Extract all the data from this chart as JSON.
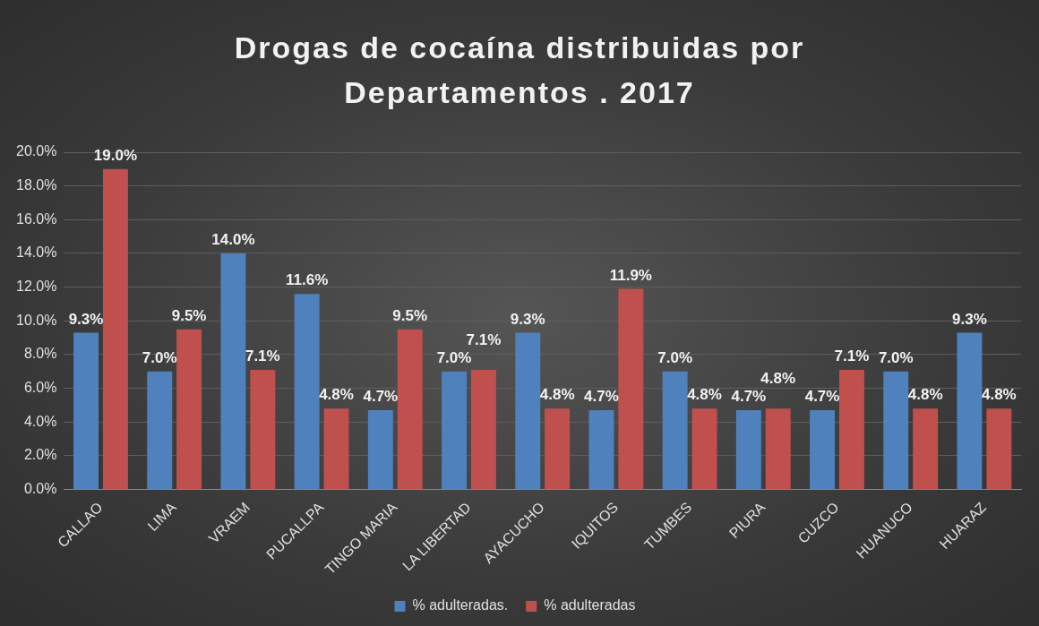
{
  "chart_data": {
    "type": "bar",
    "title": "Drogas de cocaína  distribuidas por Departamentos . 2017",
    "categories": [
      "CALLAO",
      "LIMA",
      "VRAEM",
      "PUCALLPA",
      "TINGO MARIA",
      "LA LIBERTAD",
      "AYACUCHO",
      "IQUITOS",
      "TUMBES",
      "PIURA",
      "CUZCO",
      "HUANUCO",
      "HUARAZ"
    ],
    "series": [
      {
        "name": "% adulteradas.",
        "color": "#4f81bd",
        "values": [
          9.3,
          7.0,
          14.0,
          11.6,
          4.7,
          7.0,
          9.3,
          4.7,
          7.0,
          4.7,
          4.7,
          7.0,
          9.3
        ],
        "value_labels": [
          "9.3%",
          "7.0%",
          "14.0%",
          "11.6%",
          "4.7%",
          "7.0%",
          "9.3%",
          "4.7%",
          "7.0%",
          "4.7%",
          "4.7%",
          "7.0%",
          "9.3%"
        ]
      },
      {
        "name": "% adulteradas",
        "color": "#c0504d",
        "values": [
          19.0,
          9.5,
          7.1,
          4.8,
          9.5,
          7.1,
          4.8,
          11.9,
          4.8,
          4.8,
          7.1,
          4.8,
          4.8
        ],
        "value_labels": [
          "19.0%",
          "9.5%",
          "7.1%",
          "4.8%",
          "9.5%",
          "7.1%",
          "4.8%",
          "11.9%",
          "4.8%",
          "4.8%",
          "7.1%",
          "4.8%",
          "4.8%"
        ]
      }
    ],
    "ylim": [
      0,
      20
    ],
    "yticks": [
      {
        "value": 0,
        "label": "0.0%"
      },
      {
        "value": 2,
        "label": "2.0%"
      },
      {
        "value": 4,
        "label": "4.0%"
      },
      {
        "value": 6,
        "label": "6.0%"
      },
      {
        "value": 8,
        "label": "8.0%"
      },
      {
        "value": 10,
        "label": "10.0%"
      },
      {
        "value": 12,
        "label": "12.0%"
      },
      {
        "value": 14,
        "label": "14.0%"
      },
      {
        "value": 16,
        "label": "16.0%"
      },
      {
        "value": 18,
        "label": "18.0%"
      },
      {
        "value": 20,
        "label": "20.0%"
      }
    ],
    "grid": "y",
    "legend": "bottom"
  }
}
